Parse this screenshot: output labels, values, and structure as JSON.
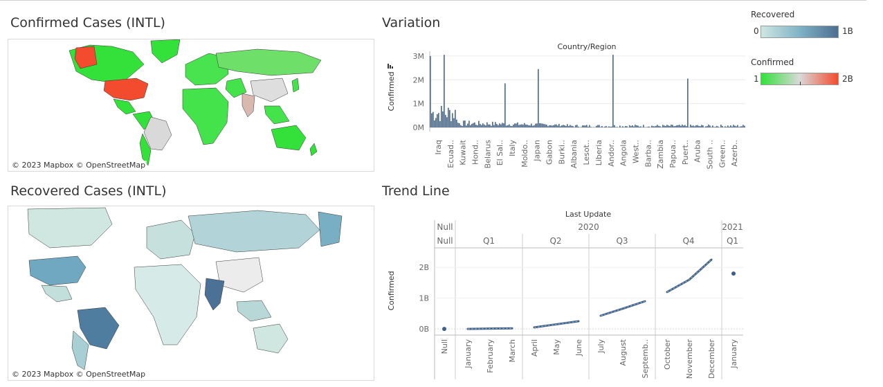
{
  "sections": {
    "confirmed_map_title": "Confirmed Cases (INTL)",
    "recovered_map_title": "Recovered Cases (INTL)",
    "variation_title": "Variation",
    "trend_title": "Trend Line"
  },
  "map_credit": "© 2023 Mapbox  © OpenStreetMap",
  "colors": {
    "recovered_low": "#cfe6e1",
    "recovered_mid": "#7fb3c6",
    "recovered_high": "#4d6e91",
    "confirmed_low": "#33e13a",
    "confirmed_mid": "#d9d9d9",
    "confirmed_high": "#f24b2e",
    "bar": "#4e6f95",
    "line": "#3d5f88"
  },
  "legends": {
    "recovered": {
      "title": "Recovered",
      "min": "0",
      "max": "1B"
    },
    "confirmed": {
      "title": "Confirmed",
      "min": "1",
      "max": "2B"
    }
  },
  "chart_data": [
    {
      "type": "bar",
      "title": "Country/Region",
      "ylabel": "Confirmed",
      "yticks": [
        "0M",
        "1M",
        "2M",
        "3M"
      ],
      "ylim": [
        0,
        3200000
      ],
      "categories": [
        "Iraq",
        "Ecuad..",
        "Kuwait",
        "Hond..",
        "Belarus",
        "El Sal..",
        "Italy",
        "Moldo..",
        "Japan",
        "Gabon",
        "Burki..",
        "Albania",
        "Lesot..",
        "Liberia",
        "Andor..",
        "Angola",
        "West..",
        "Barba..",
        "Zambia",
        "Papua..",
        "Puert..",
        "Aruba",
        "South ..",
        "Green..",
        "Azerb.."
      ],
      "spikes": [
        {
          "label": "",
          "value": 3000000
        },
        {
          "label": "",
          "value": 3050000
        },
        {
          "label": "Kuwait",
          "value": 1850000
        },
        {
          "label": "Belarus",
          "value": 2450000
        },
        {
          "label": "Moldo..",
          "value": 3050000
        },
        {
          "label": "Albania",
          "value": 2050000
        }
      ]
    },
    {
      "type": "line",
      "title": "Last Update",
      "ylabel": "Confirmed",
      "yticks": [
        "0B",
        "1B",
        "2B"
      ],
      "ylim": [
        -200000000,
        2500000000
      ],
      "years": [
        "Null",
        "2020",
        "2021"
      ],
      "quarters": [
        "Null",
        "Q1",
        "Q2",
        "Q3",
        "Q4",
        "Q1"
      ],
      "months": [
        "Null",
        "January",
        "February",
        "March",
        "April",
        "May",
        "June",
        "July",
        "August",
        "Septemb..",
        "October",
        "November",
        "December",
        "January"
      ],
      "series": [
        {
          "month": "Null",
          "values": [
            0
          ]
        },
        {
          "month": "Q1",
          "values": [
            0,
            10000000,
            20000000
          ]
        },
        {
          "month": "Q2",
          "values": [
            50000000,
            150000000,
            250000000
          ]
        },
        {
          "month": "Q3",
          "values": [
            430000000,
            660000000,
            900000000
          ]
        },
        {
          "month": "Q4",
          "values": [
            1200000000,
            1600000000,
            2250000000
          ]
        },
        {
          "month": "January",
          "values": [
            1800000000
          ]
        }
      ]
    }
  ]
}
